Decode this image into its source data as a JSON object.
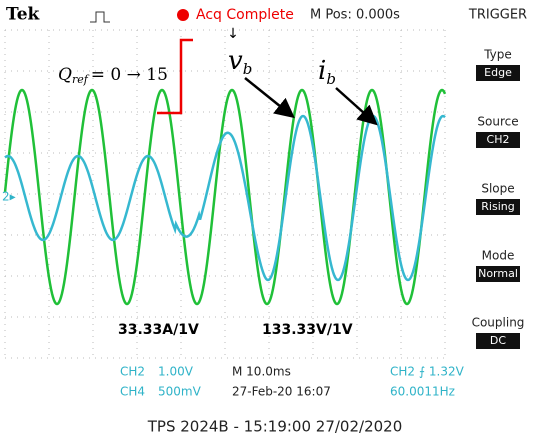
{
  "header": {
    "brand": "Tek",
    "status": "Acq Complete",
    "mpos": "M Pos: 0.000s",
    "menu_title": "TRIGGER"
  },
  "menu": [
    {
      "label": "Type",
      "value": "Edge"
    },
    {
      "label": "Source",
      "value": "CH2"
    },
    {
      "label": "Slope",
      "value": "Rising"
    },
    {
      "label": "Mode",
      "value": "Normal"
    },
    {
      "label": "Coupling",
      "value": "DC"
    }
  ],
  "annotations": {
    "qref": "Q",
    "qref_sub": "ref",
    "qref_rest": "= 0 → 15",
    "vb": "v",
    "vb_sub": "b",
    "ib": "i",
    "ib_sub": "b",
    "scale_current": "33.33A/1V",
    "scale_voltage": "133.33V/1V"
  },
  "status_bar": {
    "ch2": "CH2",
    "ch2_scale": "1.00V",
    "ch4": "CH4",
    "ch4_scale": "500mV",
    "time": "M 10.0ms",
    "date": "27-Feb-20 16:07",
    "trig": "CH2 ⨍ 1.32V",
    "freq": "60.0011Hz"
  },
  "footer": "TPS 2024B - 15:19:00  27/02/2020"
}
